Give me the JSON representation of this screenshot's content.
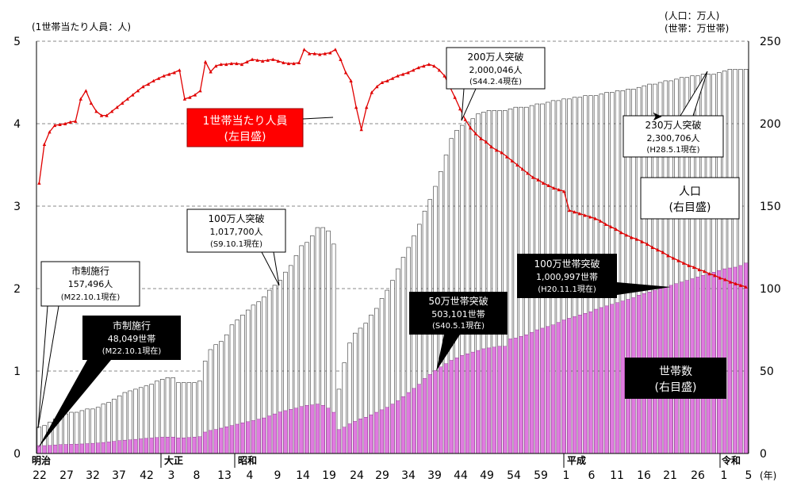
{
  "chart_data": {
    "type": "bar+line",
    "left_unit_label": "(1世帯当たり人員：人)",
    "right_unit_label_1": "(人口：万人)",
    "right_unit_label_2": "(世帯：万世帯)",
    "x_axis_unit": "(年)",
    "left_axis": {
      "min": 0,
      "max": 5,
      "ticks": [
        "0",
        "1",
        "2",
        "3",
        "4",
        "5"
      ]
    },
    "right_axis": {
      "min": 0,
      "max": 250,
      "ticks": [
        "0",
        "50",
        "100",
        "150",
        "200",
        "250"
      ]
    },
    "era_labels": [
      "明治",
      "大正",
      "昭和",
      "平成",
      "令和"
    ],
    "x_tick_labels": [
      "22",
      "27",
      "32",
      "37",
      "42",
      "3",
      "8",
      "13",
      "4",
      "9",
      "14",
      "19",
      "24",
      "29",
      "34",
      "39",
      "44",
      "49",
      "54",
      "59",
      "1",
      "6",
      "11",
      "16",
      "21",
      "26",
      "1",
      "5"
    ],
    "population_label": "人口\n(右目盛)",
    "households_label": "世帯数\n(右目盛)",
    "persons_label": "1世帯当たり人員\n(左目盛)",
    "series": [
      {
        "name": "人口",
        "unit": "万人",
        "color": "#ffffff",
        "axis": "right",
        "values": [
          16,
          17,
          19,
          21,
          23,
          24,
          25,
          25,
          26,
          27,
          27,
          28,
          30,
          31,
          33,
          35,
          37,
          38,
          39,
          40,
          41,
          42,
          44,
          45,
          46,
          46,
          43,
          43,
          43,
          43,
          44,
          56,
          63,
          66,
          68,
          72,
          78,
          81,
          84,
          87,
          90,
          92,
          95,
          99,
          102,
          105,
          110,
          114,
          120,
          126,
          128,
          132,
          137,
          137,
          135,
          127,
          39,
          55,
          67,
          73,
          76,
          79,
          84,
          88,
          94,
          99,
          105,
          112,
          119,
          125,
          132,
          139,
          147,
          154,
          162,
          171,
          181,
          191,
          196,
          199,
          201,
          203,
          206,
          207,
          208,
          208,
          208,
          208,
          209,
          210,
          210,
          210,
          211,
          212,
          212,
          213,
          214,
          214,
          215,
          215,
          216,
          216,
          217,
          217,
          217,
          218,
          219,
          219,
          220,
          220,
          221,
          221,
          222,
          223,
          224,
          224,
          225,
          226,
          226,
          227,
          228,
          228,
          229,
          229,
          230,
          230,
          230,
          231,
          232,
          233,
          233,
          233,
          233
        ]
      },
      {
        "name": "世帯数",
        "unit": "万世帯",
        "color": "#e07ae0",
        "axis": "right",
        "values": [
          4.8,
          4.8,
          4.9,
          5.2,
          5.4,
          5.5,
          5.6,
          5.7,
          5.8,
          6.0,
          6.2,
          6.4,
          6.7,
          7.0,
          7.4,
          7.8,
          8.1,
          8.3,
          8.6,
          8.9,
          9.2,
          9.4,
          9.7,
          9.9,
          10,
          10,
          9.5,
          9.5,
          9.7,
          10,
          10.2,
          13,
          14,
          14.6,
          15.4,
          16.2,
          17,
          17.8,
          18.6,
          19.3,
          20,
          20.8,
          21.6,
          22.8,
          24,
          25.2,
          26,
          26.8,
          27.5,
          28.5,
          29.2,
          29.5,
          30,
          29.2,
          27.5,
          25,
          14.5,
          16,
          18,
          19.5,
          21,
          22,
          23.5,
          25,
          26.5,
          28,
          30,
          32,
          34.5,
          37,
          39.5,
          42,
          45.5,
          48,
          50.3,
          52.5,
          54.5,
          56.5,
          58,
          59.5,
          60.5,
          61.5,
          62.5,
          63.5,
          64,
          64.5,
          65,
          65,
          69.5,
          70,
          71,
          72,
          73.5,
          75,
          76,
          77,
          78,
          79.5,
          81,
          82,
          83,
          84,
          85,
          86,
          87.5,
          88.5,
          89.5,
          90.5,
          91.5,
          92.5,
          93.5,
          94.5,
          96,
          97,
          98,
          99,
          100.1,
          101,
          102,
          103,
          104,
          105,
          106,
          107,
          108,
          109,
          110,
          111,
          112,
          112.5,
          113,
          114,
          115.5
        ]
      },
      {
        "name": "1世帯当たり人員",
        "unit": "人",
        "color": "#e00000",
        "axis": "left",
        "values": [
          3.28,
          3.75,
          3.9,
          3.98,
          3.99,
          4.0,
          4.02,
          4.03,
          4.3,
          4.4,
          4.25,
          4.15,
          4.1,
          4.1,
          4.15,
          4.2,
          4.25,
          4.3,
          4.35,
          4.4,
          4.45,
          4.48,
          4.52,
          4.55,
          4.58,
          4.6,
          4.62,
          4.65,
          4.3,
          4.32,
          4.35,
          4.4,
          4.75,
          4.63,
          4.7,
          4.72,
          4.72,
          4.73,
          4.73,
          4.72,
          4.75,
          4.78,
          4.77,
          4.76,
          4.77,
          4.78,
          4.76,
          4.74,
          4.73,
          4.73,
          4.74,
          4.9,
          4.85,
          4.85,
          4.84,
          4.85,
          4.86,
          4.9,
          4.78,
          4.62,
          4.52,
          4.2,
          3.93,
          4.2,
          4.38,
          4.45,
          4.5,
          4.52,
          4.55,
          4.58,
          4.6,
          4.62,
          4.65,
          4.68,
          4.7,
          4.72,
          4.7,
          4.65,
          4.58,
          4.45,
          4.32,
          4.18,
          4.05,
          3.95,
          3.88,
          3.82,
          3.78,
          3.72,
          3.68,
          3.65,
          3.6,
          3.55,
          3.5,
          3.45,
          3.4,
          3.35,
          3.32,
          3.28,
          3.25,
          3.22,
          3.2,
          3.18,
          2.95,
          2.93,
          2.91,
          2.89,
          2.87,
          2.85,
          2.82,
          2.78,
          2.75,
          2.72,
          2.68,
          2.65,
          2.62,
          2.6,
          2.57,
          2.54,
          2.5,
          2.47,
          2.44,
          2.4,
          2.37,
          2.34,
          2.31,
          2.28,
          2.26,
          2.23,
          2.21,
          2.18,
          2.16,
          2.13,
          2.11,
          2.08,
          2.06,
          2.04,
          2.02
        ]
      }
    ],
    "annotations": [
      {
        "id": "pop100",
        "text1": "100万人突破",
        "text2": "1,017,700人",
        "text3": "(S9.10.1現在)"
      },
      {
        "id": "pop200",
        "text1": "200万人突破",
        "text2": "2,000,046人",
        "text3": "(S44.2.4現在)"
      },
      {
        "id": "pop230",
        "text1": "230万人突破",
        "text2": "2,300,706人",
        "text3": "(H28.5.1現在)"
      },
      {
        "id": "city_pop",
        "text1": "市制施行",
        "text2": "157,496人",
        "text3": "(M22.10.1現在)"
      },
      {
        "id": "city_hh",
        "text1": "市制施行",
        "text2": "48,049世帯",
        "text3": "(M22.10.1現在)"
      },
      {
        "id": "hh50",
        "text1": "50万世帯突破",
        "text2": "503,101世帯",
        "text3": "(S40.5.1現在)"
      },
      {
        "id": "hh100",
        "text1": "100万世帯突破",
        "text2": "1,000,997世帯",
        "text3": "(H20.11.1現在)"
      }
    ]
  }
}
